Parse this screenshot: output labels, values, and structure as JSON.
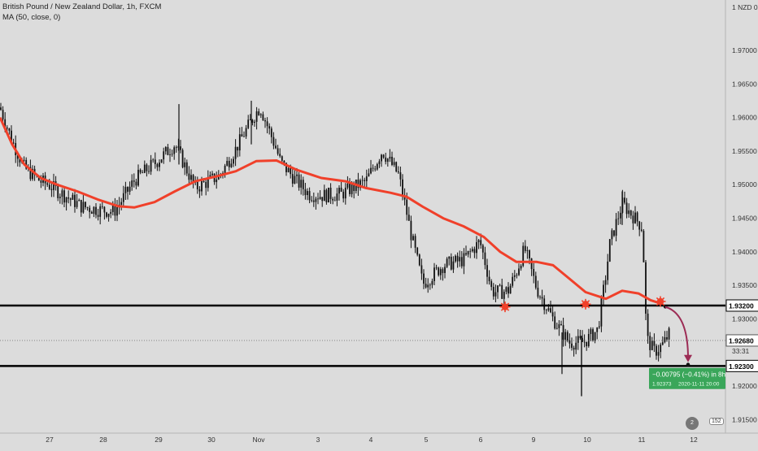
{
  "header": {
    "title": "British Pound / New Zealand Dollar, 1h, FXCM",
    "indicator": "MA (50, close, 0)"
  },
  "chart_data": {
    "type": "candlestick",
    "axis_unit_label": "1 NZD 0",
    "ylim": [
      1.913,
      1.9775
    ],
    "y_ticks": [
      "1.97000",
      "1.96500",
      "1.96000",
      "1.95500",
      "1.95000",
      "1.94500",
      "1.94000",
      "1.93500",
      "1.93000",
      "1.92000",
      "1.91500"
    ],
    "x_ticks": [
      "27",
      "28",
      "29",
      "30",
      "Nov",
      "3",
      "4",
      "5",
      "6",
      "9",
      "10",
      "11",
      "12"
    ],
    "levels": [
      {
        "price": 1.932,
        "label": "1.93200"
      },
      {
        "price": 1.923,
        "label": "1.92300"
      }
    ],
    "current_price": {
      "price": 1.9268,
      "label": "1.92680",
      "countdown": "33:31"
    },
    "ma_label": "MA (50, close, 0)",
    "ma_path": [
      [
        0,
        1.96
      ],
      [
        15,
        1.956
      ],
      [
        30,
        1.953
      ],
      [
        50,
        1.951
      ],
      [
        70,
        1.95
      ],
      [
        95,
        1.949
      ],
      [
        120,
        1.9478
      ],
      [
        145,
        1.9468
      ],
      [
        165,
        1.9466
      ],
      [
        190,
        1.9474
      ],
      [
        215,
        1.949
      ],
      [
        240,
        1.9505
      ],
      [
        265,
        1.9512
      ],
      [
        290,
        1.952
      ],
      [
        315,
        1.9535
      ],
      [
        340,
        1.9536
      ],
      [
        365,
        1.9522
      ],
      [
        395,
        1.951
      ],
      [
        425,
        1.9505
      ],
      [
        450,
        1.9495
      ],
      [
        480,
        1.9488
      ],
      [
        500,
        1.9482
      ],
      [
        520,
        1.9467
      ],
      [
        545,
        1.945
      ],
      [
        570,
        1.9438
      ],
      [
        595,
        1.9422
      ],
      [
        615,
        1.94
      ],
      [
        635,
        1.9385
      ],
      [
        660,
        1.9385
      ],
      [
        680,
        1.938
      ],
      [
        700,
        1.936
      ],
      [
        720,
        1.934
      ],
      [
        745,
        1.933
      ],
      [
        765,
        1.9342
      ],
      [
        785,
        1.9338
      ],
      [
        800,
        1.9328
      ],
      [
        815,
        1.9322
      ]
    ],
    "signals": [
      {
        "x": 621,
        "price": 1.9318
      },
      {
        "x": 720,
        "price": 1.9322
      },
      {
        "x": 812,
        "price": 1.9326
      }
    ],
    "projection": {
      "start": [
        818,
        1.9318
      ],
      "end": [
        846,
        1.9232
      ],
      "change": "−0.00795 (−0.41%) in 8h",
      "target": "1.92373",
      "date": "2020-11-11  20:00"
    }
  },
  "footer": {
    "badge_count": "152",
    "badge_small": "2"
  }
}
